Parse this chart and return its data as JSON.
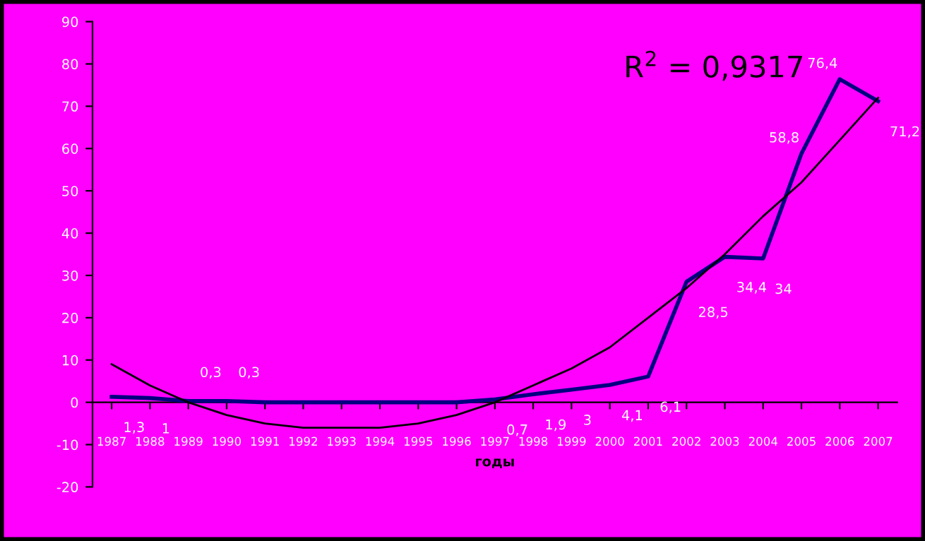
{
  "chart_data": {
    "type": "line",
    "xlabel": "годы",
    "categories": [
      "1987",
      "1988",
      "1989",
      "1990",
      "1991",
      "1992",
      "1993",
      "1994",
      "1995",
      "1996",
      "1997",
      "1998",
      "1999",
      "2000",
      "2001",
      "2002",
      "2003",
      "2004",
      "2005",
      "2006",
      "2007"
    ],
    "series": [
      {
        "color": "#000080",
        "values": [
          1.3,
          1,
          0.3,
          0.3,
          0,
          0,
          0,
          0,
          0,
          0,
          0.7,
          1.9,
          3,
          4.1,
          6.1,
          28.5,
          34.4,
          34,
          58.8,
          76.4,
          71.2
        ],
        "value_labels": [
          "1,3",
          "1",
          "0,3",
          "0,3",
          null,
          null,
          null,
          null,
          null,
          null,
          "0,7",
          "1,9",
          "3",
          "4,1",
          "6,1",
          "28,5",
          "34,4",
          "34",
          "58,8",
          "76,4",
          "71,2"
        ]
      },
      {
        "color": "#000000",
        "values": [
          9,
          4,
          0,
          -3,
          -5,
          -6,
          -6,
          -6,
          -5,
          -3,
          0,
          4,
          8,
          13,
          20,
          27,
          35,
          44,
          52,
          62,
          72
        ]
      }
    ],
    "annotations": [
      {
        "text": "R$^{2}$ = 0,9317"
      }
    ],
    "ylim": [
      -20,
      90
    ],
    "yticks": [
      -20,
      -10,
      0,
      10,
      20,
      30,
      40,
      50,
      60,
      70,
      80,
      90
    ],
    "legend": false,
    "marker": "none"
  }
}
